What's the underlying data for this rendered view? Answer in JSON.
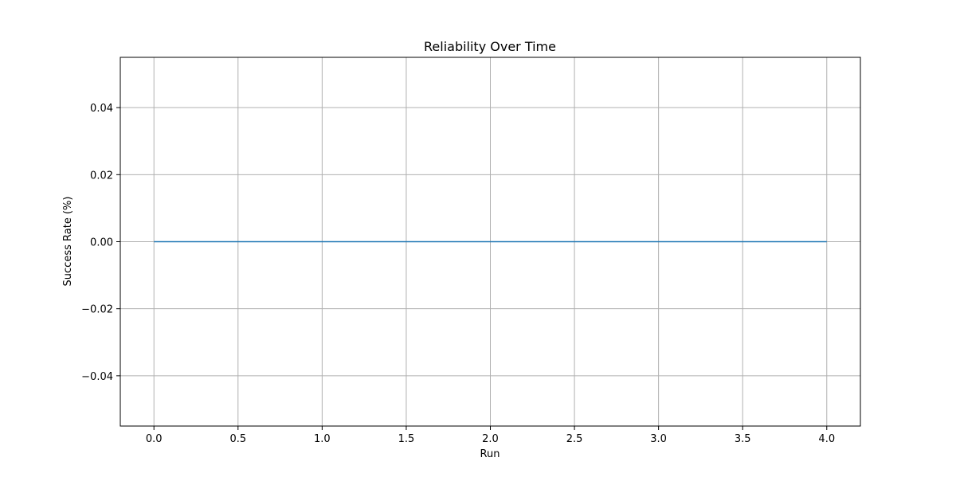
{
  "chart_data": {
    "type": "line",
    "title": "Reliability Over Time",
    "xlabel": "Run",
    "ylabel": "Success Rate (%)",
    "xlim": [
      -0.2,
      4.2
    ],
    "ylim": [
      -0.055,
      0.055
    ],
    "x_ticks": [
      0.0,
      0.5,
      1.0,
      1.5,
      2.0,
      2.5,
      3.0,
      3.5,
      4.0
    ],
    "x_tick_labels": [
      "0.0",
      "0.5",
      "1.0",
      "1.5",
      "2.0",
      "2.5",
      "3.0",
      "3.5",
      "4.0"
    ],
    "y_ticks": [
      -0.04,
      -0.02,
      0.0,
      0.02,
      0.04
    ],
    "y_tick_labels": [
      "−0.04",
      "−0.02",
      "0.00",
      "0.02",
      "0.04"
    ],
    "grid": true,
    "series": [
      {
        "x": [
          0,
          1,
          2,
          3,
          4
        ],
        "values": [
          0,
          0,
          0,
          0,
          0
        ],
        "color": "#1f77b4"
      }
    ],
    "colors": {
      "grid": "#b0b0b0",
      "frame": "#000000",
      "line": "#1f77b4"
    }
  }
}
